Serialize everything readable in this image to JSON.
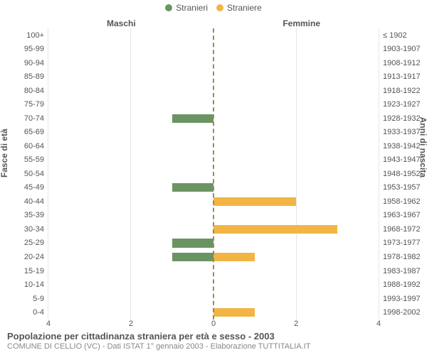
{
  "chart": {
    "type": "population-pyramid",
    "legend": [
      {
        "label": "Stranieri",
        "color": "#6b9463"
      },
      {
        "label": "Straniere",
        "color": "#f2b544"
      }
    ],
    "left_column_title": "Maschi",
    "right_column_title": "Femmine",
    "left_axis_title": "Fasce di età",
    "right_axis_title": "Anni di nascita",
    "x_max": 4,
    "x_ticks_left": [
      4,
      2,
      0
    ],
    "x_ticks_right": [
      0,
      2,
      4
    ],
    "series_colors": {
      "male": "#6b9463",
      "female": "#f2b544"
    },
    "grid_color": "#e6e6e6",
    "center_line_color": "#9a8a5a",
    "background": "#ffffff",
    "rows": [
      {
        "age": "100+",
        "birth": "≤ 1902",
        "male": 0,
        "female": 0
      },
      {
        "age": "95-99",
        "birth": "1903-1907",
        "male": 0,
        "female": 0
      },
      {
        "age": "90-94",
        "birth": "1908-1912",
        "male": 0,
        "female": 0
      },
      {
        "age": "85-89",
        "birth": "1913-1917",
        "male": 0,
        "female": 0
      },
      {
        "age": "80-84",
        "birth": "1918-1922",
        "male": 0,
        "female": 0
      },
      {
        "age": "75-79",
        "birth": "1923-1927",
        "male": 0,
        "female": 0
      },
      {
        "age": "70-74",
        "birth": "1928-1932",
        "male": 1,
        "female": 0
      },
      {
        "age": "65-69",
        "birth": "1933-1937",
        "male": 0,
        "female": 0
      },
      {
        "age": "60-64",
        "birth": "1938-1942",
        "male": 0,
        "female": 0
      },
      {
        "age": "55-59",
        "birth": "1943-1947",
        "male": 0,
        "female": 0
      },
      {
        "age": "50-54",
        "birth": "1948-1952",
        "male": 0,
        "female": 0
      },
      {
        "age": "45-49",
        "birth": "1953-1957",
        "male": 1,
        "female": 0
      },
      {
        "age": "40-44",
        "birth": "1958-1962",
        "male": 0,
        "female": 2
      },
      {
        "age": "35-39",
        "birth": "1963-1967",
        "male": 0,
        "female": 0
      },
      {
        "age": "30-34",
        "birth": "1968-1972",
        "male": 0,
        "female": 3
      },
      {
        "age": "25-29",
        "birth": "1973-1977",
        "male": 1,
        "female": 0
      },
      {
        "age": "20-24",
        "birth": "1978-1982",
        "male": 1,
        "female": 1
      },
      {
        "age": "15-19",
        "birth": "1983-1987",
        "male": 0,
        "female": 0
      },
      {
        "age": "10-14",
        "birth": "1988-1992",
        "male": 0,
        "female": 0
      },
      {
        "age": "5-9",
        "birth": "1993-1997",
        "male": 0,
        "female": 0
      },
      {
        "age": "0-4",
        "birth": "1998-2002",
        "male": 0,
        "female": 1
      }
    ],
    "footer_title": "Popolazione per cittadinanza straniera per età e sesso - 2003",
    "footer_sub": "COMUNE DI CELLIO (VC) - Dati ISTAT 1° gennaio 2003 - Elaborazione TUTTITALIA.IT"
  }
}
